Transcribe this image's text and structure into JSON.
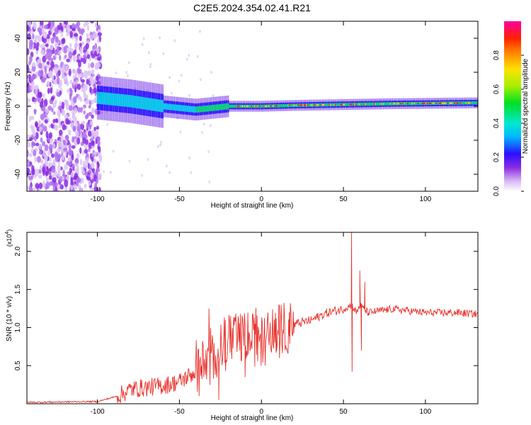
{
  "figure": {
    "title": "C2E5.2024.354.02.41.R21"
  },
  "chart_data": [
    {
      "type": "heatmap",
      "xlabel": "Height of straight line (km)",
      "ylabel": "Frequency (Hz)",
      "xlim": [
        -143,
        132
      ],
      "ylim": [
        -50,
        50
      ],
      "x_ticks": [
        -100,
        -50,
        0,
        50,
        100
      ],
      "y_ticks": [
        -40,
        -20,
        0,
        20,
        40
      ],
      "colorbar": {
        "label": "Normalized spectral amplitude",
        "range": [
          0,
          1
        ],
        "ticks": [
          "0.0",
          "0.2",
          "0.4",
          "0.6",
          "0.8"
        ],
        "tick_values": [
          0,
          0.2,
          0.4,
          0.6,
          0.8
        ]
      },
      "ridge": {
        "x": [
          -100,
          -80,
          -60,
          -40,
          -30,
          -20,
          -10,
          0,
          20,
          50,
          80,
          132
        ],
        "freq": [
          5,
          3,
          0,
          -2,
          -1,
          0,
          0,
          0,
          0.5,
          1,
          1.5,
          2
        ]
      },
      "noise_region_x": [
        -143,
        -98
      ]
    },
    {
      "type": "line",
      "xlabel": "Height of straight line (km)",
      "ylabel": "SNR (10 * v/v)",
      "y_multiplier": "(x10",
      "y_multiplier_exp": "4",
      "y_multiplier_close": ")",
      "xlim": [
        -143,
        132
      ],
      "ylim": [
        0,
        2.25
      ],
      "x_ticks": [
        -100,
        -50,
        0,
        50,
        100
      ],
      "y_ticks": [
        0.5,
        1.0,
        1.5,
        2.0
      ],
      "y_tick_labels": [
        "0.5",
        "1.0",
        "1.5",
        "2.0"
      ],
      "series": [
        {
          "color": "#e8322c",
          "envelope_x": [
            -143,
            -100,
            -88,
            -80,
            -60,
            -50,
            -35,
            -28,
            -20,
            -10,
            0,
            10,
            20,
            30,
            40,
            50,
            55,
            58,
            60,
            65,
            80,
            100,
            120,
            132
          ],
          "envelope_y": [
            0.02,
            0.03,
            0.1,
            0.2,
            0.25,
            0.3,
            0.5,
            0.7,
            0.85,
            0.9,
            0.85,
            1.0,
            1.05,
            1.1,
            1.2,
            1.25,
            1.3,
            1.2,
            1.3,
            1.2,
            1.25,
            1.2,
            1.2,
            1.18
          ],
          "spikes": [
            {
              "x": 55,
              "y": 2.25
            },
            {
              "x": 55.3,
              "y": 0.42
            },
            {
              "x": 60,
              "y": 1.75
            },
            {
              "x": 61,
              "y": 0.7
            },
            {
              "x": 63,
              "y": 1.6
            },
            {
              "x": -32,
              "y": 1.25
            },
            {
              "x": -26,
              "y": 0.05
            },
            {
              "x": -22,
              "y": 1.1
            },
            {
              "x": -14,
              "y": 1.12
            },
            {
              "x": -10,
              "y": 0.35
            },
            {
              "x": -4,
              "y": 1.05
            },
            {
              "x": 9,
              "y": 1.12
            },
            {
              "x": 11,
              "y": 0.6
            },
            {
              "x": 17,
              "y": 1.2
            }
          ]
        }
      ]
    }
  ]
}
